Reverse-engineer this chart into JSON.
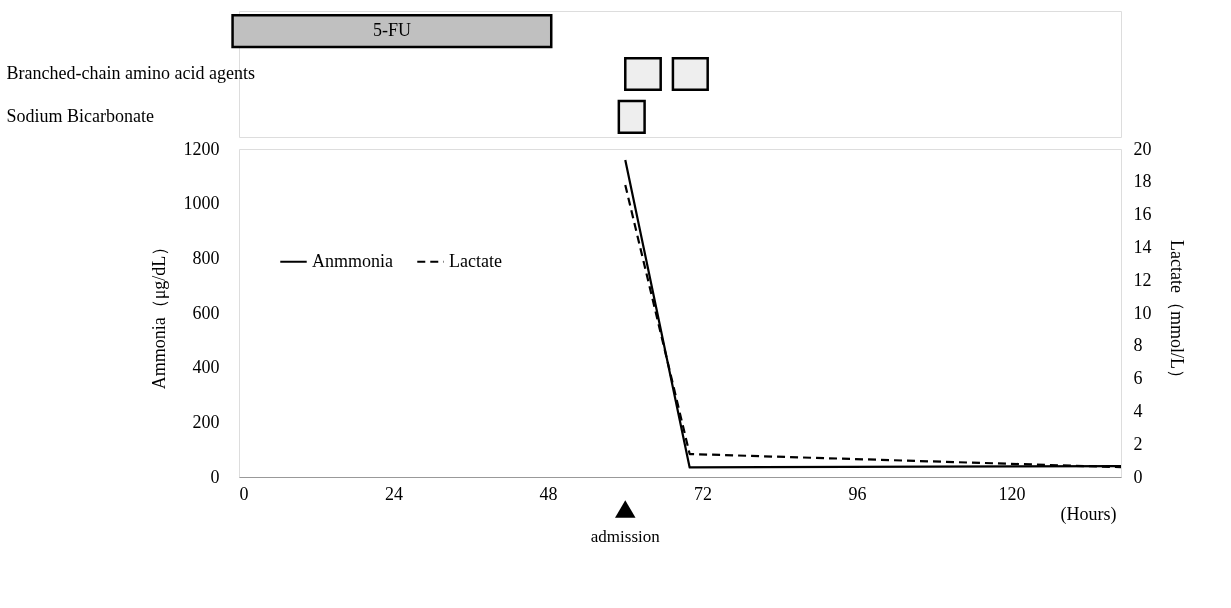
{
  "chart_data": [
    {
      "type": "bar",
      "orientation": "horizontal",
      "categories": [
        null,
        "Branched-chain amino acid agents",
        "Sodium Bicarbonate"
      ],
      "xlim": [
        0,
        137
      ],
      "tick_labels": "y",
      "series": [
        {
          "colors": [
            "#c0c0c0",
            "#eeeeee",
            "#eeeeee"
          ],
          "base": [
            -1,
            60,
            59
          ],
          "values": [
            49.5,
            5.5,
            4
          ]
        },
        {
          "color": "#eeeeee",
          "base": [
            null,
            67.4,
            null
          ],
          "values": [
            null,
            5.4,
            null
          ]
        }
      ],
      "annotations": [
        "5-FU"
      ]
    },
    {
      "type": "line",
      "xlabel": "(Hours)",
      "ylabel": "Ammonia（μg/dL）",
      "y2label": "Lactate（mmol/L）",
      "xlim": [
        0,
        137
      ],
      "xticks": [
        0,
        24,
        48,
        72,
        96,
        120
      ],
      "ylim": [
        0,
        1200
      ],
      "yticks": [
        0,
        200,
        400,
        600,
        800,
        1000,
        1200
      ],
      "y2lim": [
        0,
        20
      ],
      "y2ticks": [
        0,
        2,
        4,
        6,
        8,
        10,
        12,
        14,
        16,
        18,
        20
      ],
      "series": [
        {
          "name": "Anmmonia",
          "color": "#000000",
          "line_style": "solid",
          "x": [
            60,
            70,
            137
          ],
          "values": [
            1160,
            35,
            40
          ]
        },
        {
          "name": "Lactate",
          "color": "#000000",
          "line_style": "dashed",
          "axis": "y2",
          "x": [
            60,
            70,
            137
          ],
          "values": [
            17.8,
            1.4,
            0.6
          ]
        }
      ],
      "annotations": [
        "admission"
      ],
      "legend": "left",
      "grid": false,
      "marker": "none"
    }
  ]
}
